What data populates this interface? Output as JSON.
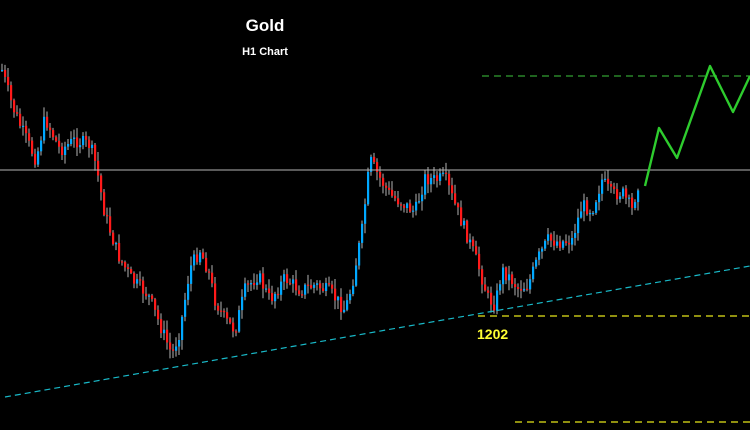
{
  "chart_data": {
    "type": "candlestick",
    "title": "Gold",
    "subtitle": "H1 Chart",
    "xlabel": "",
    "ylabel": "",
    "grid": false,
    "colors": {
      "background": "#000000",
      "bull": "#00a8ff",
      "bear": "#ff1a1a",
      "wick": "#ffffff",
      "resistance": "#b4b4b4",
      "trendline": "#19b9c8",
      "support": "#e6e619",
      "target": "#32a032",
      "projection": "#2ecc2e"
    },
    "annotations": {
      "support_level_label": "1202"
    }
  }
}
